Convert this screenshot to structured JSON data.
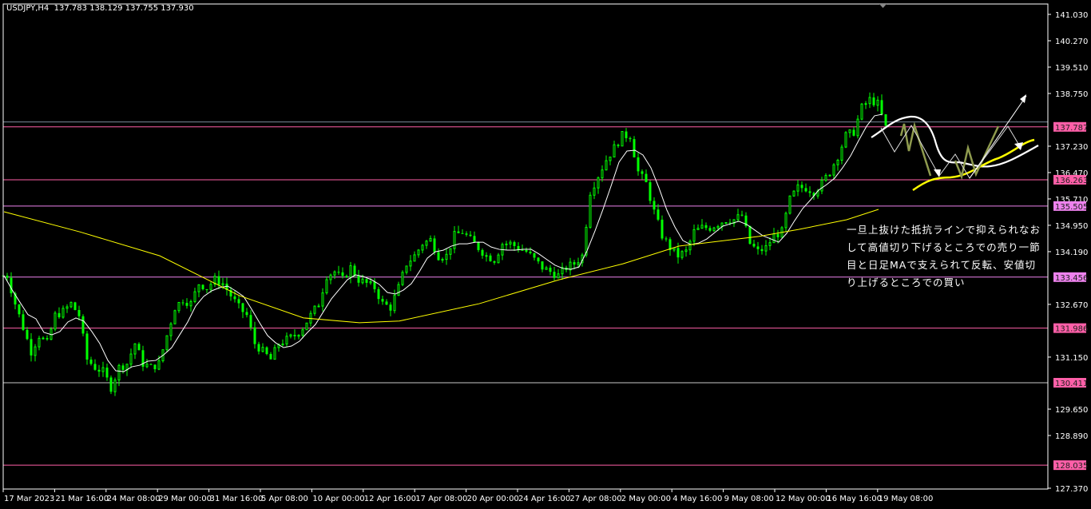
{
  "header": {
    "symbol": "USDJPY,H4",
    "ohlc": "137.783 138.129 137.755 137.930"
  },
  "annotation": {
    "lines": [
      "一旦上抜けた抵抗ラインで抑えられなお",
      "して高値切り下げるところでの売り一節",
      "目と日足MAで支えられて反転、安値切",
      "り上げるところでの買い"
    ]
  },
  "colors": {
    "background": "#000000",
    "bull_candle": "#00ff00",
    "bear_candle": "#00ff00",
    "ma_fast": "#ffffff",
    "ma_slow": "#ffff00",
    "level_pink": "#ff5fa8",
    "level_violet": "#ee82ee",
    "axis": "#ffffff",
    "projection": "#8e9a4e"
  },
  "chart_data": {
    "type": "candlestick",
    "title": "USDJPY,H4",
    "ylim": [
      127.37,
      141.03
    ],
    "y_ticks": [
      "141.030",
      "140.270",
      "139.510",
      "138.750",
      "137.230",
      "136.470",
      "135.710",
      "134.950",
      "134.190",
      "132.670",
      "131.150",
      "129.650",
      "128.890",
      "127.370"
    ],
    "x_ticks": [
      "17 Mar 2023",
      "21 Mar 16:00",
      "24 Mar 08:00",
      "29 Mar 00:00",
      "31 Mar 16:00",
      "5 Apr 08:00",
      "10 Apr 00:00",
      "12 Apr 16:00",
      "17 Apr 08:00",
      "20 Apr 00:00",
      "24 Apr 16:00",
      "27 Apr 08:00",
      "2 May 00:00",
      "4 May 16:00",
      "9 May 08:00",
      "12 May 00:00",
      "16 May 16:00",
      "19 May 08:00"
    ],
    "closes": [
      133.5,
      132.69,
      132.0,
      131.31,
      131.77,
      131.54,
      132.35,
      132.46,
      132.69,
      132.35,
      131.08,
      130.85,
      130.73,
      130.27,
      130.85,
      130.96,
      131.54,
      130.96,
      130.85,
      130.96,
      131.77,
      132.58,
      132.81,
      132.69,
      133.27,
      133.15,
      133.38,
      133.27,
      132.92,
      132.58,
      132.35,
      131.54,
      131.31,
      131.08,
      131.54,
      131.65,
      131.77,
      132.0,
      132.35,
      132.69,
      133.5,
      133.61,
      133.38,
      133.73,
      133.38,
      133.27,
      133.15,
      132.69,
      132.58,
      133.15,
      133.84,
      134.07,
      134.42,
      134.53,
      134.07,
      134.07,
      134.65,
      134.76,
      134.53,
      134.3,
      134.07,
      133.96,
      134.42,
      134.42,
      134.3,
      134.19,
      133.96,
      133.73,
      133.61,
      133.5,
      133.73,
      133.84,
      134.07,
      135.92,
      136.38,
      136.84,
      137.18,
      137.53,
      137.53,
      136.49,
      136.15,
      135.34,
      134.65,
      134.3,
      134.07,
      134.19,
      134.76,
      134.88,
      134.88,
      135.0,
      135.11,
      135.11,
      135.23,
      134.42,
      134.19,
      134.3,
      134.65,
      134.76,
      135.69,
      136.03,
      136.03,
      135.92,
      136.15,
      136.49,
      136.95,
      137.53,
      137.64,
      138.34,
      138.57,
      138.45,
      137.76
    ],
    "ma_slow": [
      {
        "i": 0,
        "price": 135.34
      },
      {
        "i": 9.5,
        "price": 134.76
      },
      {
        "i": 19.5,
        "price": 134.07
      },
      {
        "i": 29.5,
        "price": 132.92
      },
      {
        "i": 37.5,
        "price": 132.28
      },
      {
        "i": 44.5,
        "price": 132.14
      },
      {
        "i": 49.5,
        "price": 132.19
      },
      {
        "i": 59.5,
        "price": 132.69
      },
      {
        "i": 69.5,
        "price": 133.38
      },
      {
        "i": 77.5,
        "price": 133.84
      },
      {
        "i": 84.5,
        "price": 134.35
      },
      {
        "i": 94.5,
        "price": 134.63
      },
      {
        "i": 99.5,
        "price": 134.83
      },
      {
        "i": 105.5,
        "price": 135.11
      },
      {
        "i": 109.5,
        "price": 135.41
      }
    ],
    "current_price": 137.93,
    "levels": [
      {
        "price": 137.787,
        "label": "137.787",
        "color": "#ff5fa8"
      },
      {
        "price": 136.263,
        "label": "136.263",
        "color": "#ff5fa8"
      },
      {
        "price": 135.505,
        "label": "135.505",
        "color": "#ee82ee"
      },
      {
        "price": 133.456,
        "label": "133.456",
        "color": "#ee82ee"
      },
      {
        "price": 131.986,
        "label": "131.986",
        "color": "#ff5fa8"
      },
      {
        "price": 130.411,
        "label": "130.411",
        "color": "#ff5fa8",
        "line": "#c8c8c8"
      },
      {
        "price": 128.035,
        "label": "128.035",
        "color": "#ff5fa8"
      }
    ]
  }
}
